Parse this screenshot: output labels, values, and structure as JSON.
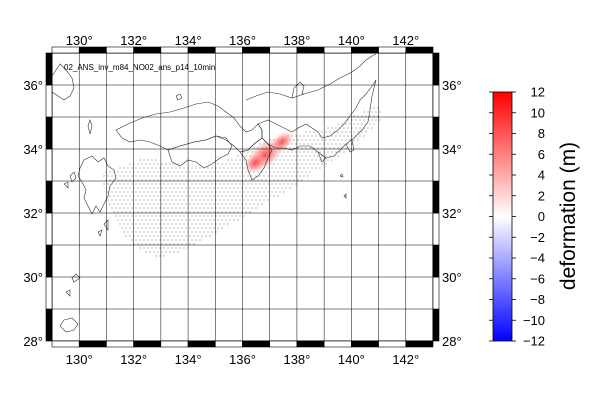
{
  "map": {
    "title": "02_ANS_inv_m84_NO02_ans_p14_10min",
    "lon_range": [
      129,
      143
    ],
    "lat_range": [
      28,
      37
    ],
    "lon_ticks": [
      "130°",
      "132°",
      "134°",
      "136°",
      "138°",
      "140°",
      "142°"
    ],
    "lat_ticks": [
      "36°",
      "34°",
      "32°",
      "30°",
      "28°"
    ],
    "grid_step_deg": 1,
    "frame_colors": [
      "#000000",
      "#ffffff"
    ]
  },
  "colorbar": {
    "title": "deformation (m)",
    "range": [
      -12,
      12
    ],
    "ticks": [
      "12",
      "10",
      "8",
      "6",
      "4",
      "2",
      "0",
      "−2",
      "−4",
      "−6",
      "−8",
      "−10",
      "−12"
    ],
    "colors": {
      "max": "#ff0000",
      "mid": "#ffffff",
      "min": "#0000ff"
    }
  }
}
